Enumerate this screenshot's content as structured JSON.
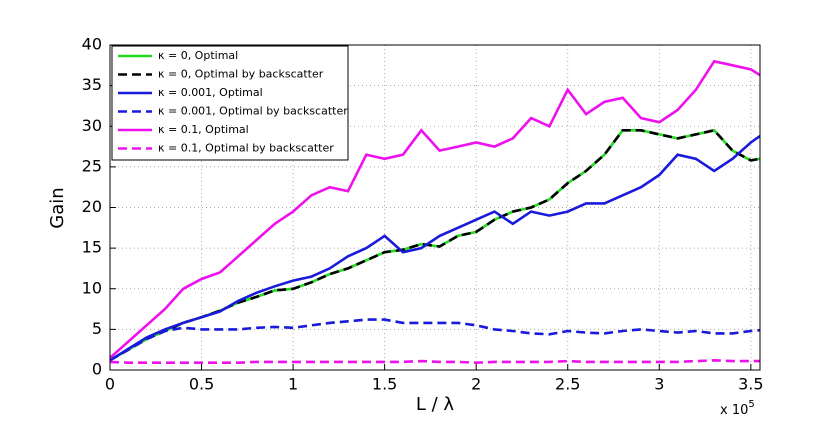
{
  "chart_data": {
    "type": "line",
    "x_label": "L / λ",
    "y_label": "Gain",
    "x_scale_label": "x 10",
    "x_scale_exponent": "5",
    "x": [
      0,
      0.1,
      0.2,
      0.3,
      0.4,
      0.5,
      0.6,
      0.7,
      0.8,
      0.9,
      1.0,
      1.1,
      1.2,
      1.3,
      1.4,
      1.5,
      1.6,
      1.7,
      1.8,
      1.9,
      2.0,
      2.1,
      2.2,
      2.3,
      2.4,
      2.5,
      2.6,
      2.7,
      2.8,
      2.9,
      3.0,
      3.1,
      3.2,
      3.3,
      3.4,
      3.5,
      3.55
    ],
    "xlim": [
      0,
      3.55
    ],
    "xticks": [
      0,
      0.5,
      1,
      1.5,
      2,
      2.5,
      3,
      3.5
    ],
    "ylim": [
      0,
      40
    ],
    "yticks": [
      0,
      5,
      10,
      15,
      20,
      25,
      30,
      35,
      40
    ],
    "grid": true,
    "legend": "upper-left",
    "series": [
      {
        "name": "κ = 0, Optimal",
        "color": "#22dd22",
        "dash": false,
        "values": [
          1.2,
          2.5,
          3.8,
          4.8,
          5.8,
          6.5,
          7.3,
          8.3,
          9.0,
          9.8,
          10.0,
          10.8,
          11.8,
          12.5,
          13.5,
          14.5,
          14.8,
          15.5,
          15.2,
          16.5,
          17.0,
          18.5,
          19.5,
          20.0,
          21.0,
          23.0,
          24.5,
          26.5,
          29.5,
          29.5,
          29.0,
          28.5,
          29.0,
          29.5,
          27.0,
          25.8,
          26.0
        ]
      },
      {
        "name": "κ = 0, Optimal by backscatter",
        "color": "#000000",
        "dash": true,
        "values": [
          1.2,
          2.5,
          3.8,
          4.8,
          5.8,
          6.5,
          7.3,
          8.3,
          9.0,
          9.8,
          10.0,
          10.8,
          11.8,
          12.5,
          13.5,
          14.5,
          14.8,
          15.5,
          15.2,
          16.5,
          17.0,
          18.5,
          19.5,
          20.0,
          21.0,
          23.0,
          24.5,
          26.5,
          29.5,
          29.5,
          29.0,
          28.5,
          29.0,
          29.5,
          27.0,
          25.8,
          26.0
        ]
      },
      {
        "name": "κ = 0.001, Optimal",
        "color": "#1a1adb",
        "dash": false,
        "values": [
          1.2,
          2.6,
          4.0,
          5.0,
          5.8,
          6.5,
          7.2,
          8.5,
          9.5,
          10.3,
          11.0,
          11.5,
          12.5,
          14.0,
          15.0,
          16.5,
          14.5,
          15.0,
          16.5,
          17.5,
          18.5,
          19.5,
          18.0,
          19.5,
          19.0,
          19.5,
          20.5,
          20.5,
          21.5,
          22.5,
          24.0,
          26.5,
          26.0,
          24.5,
          26.0,
          28.0,
          28.8
        ]
      },
      {
        "name": "κ = 0.001, Optimal by backscatter",
        "color": "#1a1adb",
        "dash": true,
        "values": [
          1.2,
          2.5,
          3.8,
          4.8,
          5.2,
          5.0,
          5.0,
          5.0,
          5.2,
          5.3,
          5.2,
          5.5,
          5.8,
          6.0,
          6.2,
          6.2,
          5.8,
          5.8,
          5.8,
          5.8,
          5.5,
          5.0,
          4.8,
          4.5,
          4.4,
          4.8,
          4.6,
          4.5,
          4.8,
          5.0,
          4.8,
          4.6,
          4.8,
          4.5,
          4.5,
          4.8,
          4.9
        ]
      },
      {
        "name": "κ = 0.1, Optimal",
        "color": "#ee11ee",
        "dash": false,
        "values": [
          1.5,
          3.5,
          5.5,
          7.5,
          10.0,
          11.2,
          12.0,
          14.0,
          16.0,
          18.0,
          19.5,
          21.5,
          22.5,
          22.0,
          26.5,
          26.0,
          26.5,
          29.5,
          27.0,
          27.5,
          28.0,
          27.5,
          28.5,
          31.0,
          30.0,
          34.5,
          31.5,
          33.0,
          33.5,
          31.0,
          30.5,
          32.0,
          34.5,
          38.0,
          37.5,
          37.0,
          36.3
        ]
      },
      {
        "name": "κ = 0.1, Optimal by backscatter",
        "color": "#ee11ee",
        "dash": true,
        "values": [
          1.0,
          0.9,
          0.9,
          0.9,
          0.9,
          0.9,
          0.9,
          0.9,
          1.0,
          1.0,
          1.0,
          1.0,
          1.0,
          1.0,
          1.0,
          1.0,
          1.0,
          1.1,
          1.0,
          1.0,
          0.9,
          1.0,
          1.0,
          1.0,
          1.0,
          1.1,
          1.0,
          1.0,
          1.0,
          1.0,
          1.0,
          1.0,
          1.1,
          1.2,
          1.1,
          1.1,
          1.1
        ]
      }
    ]
  }
}
